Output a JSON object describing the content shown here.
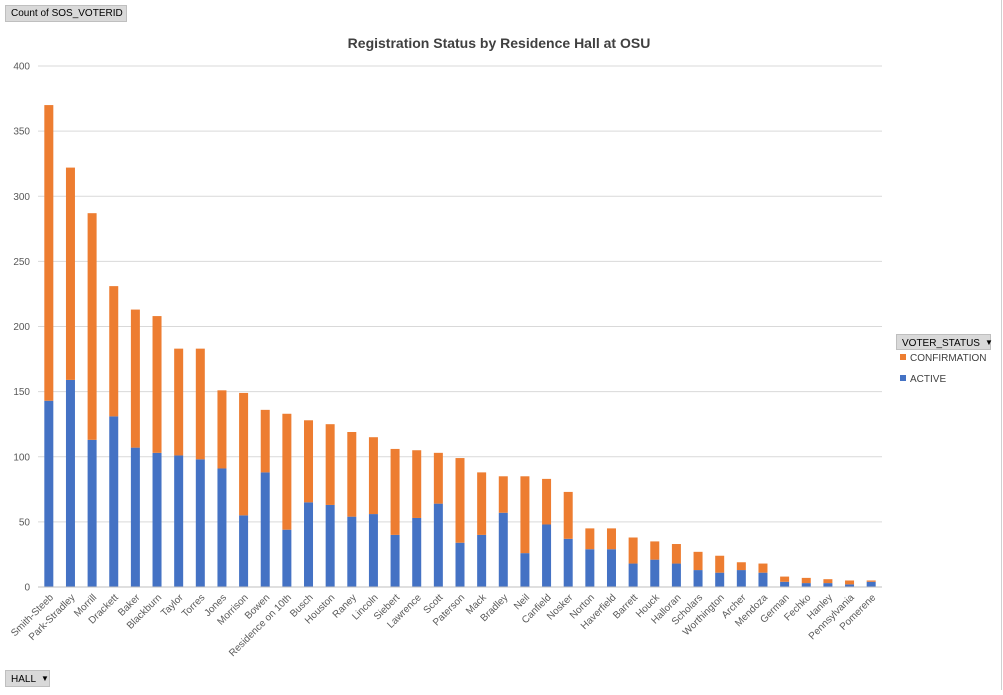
{
  "buttons": {
    "value_field": "Count of SOS_VOTERID",
    "axis_field": "HALL",
    "legend_field": "VOTER_STATUS"
  },
  "colors": {
    "active": "#4472c4",
    "confirmation": "#ed7d31",
    "grid": "#d9d9d9",
    "text": "#595959"
  },
  "icons": {
    "dropdown": "chevron-down-icon"
  },
  "chart_data": {
    "type": "bar",
    "stacked": true,
    "title": "Registration Status by Residence Hall at OSU",
    "xlabel": "",
    "ylabel": "",
    "ylim": [
      0,
      400
    ],
    "yticks": [
      0,
      50,
      100,
      150,
      200,
      250,
      300,
      350,
      400
    ],
    "grid": true,
    "legend_position": "right",
    "categories": [
      "Smith-Steeb",
      "Park-Stradley",
      "Morrill",
      "Drackett",
      "Baker",
      "Blackburn",
      "Taylor",
      "Torres",
      "Jones",
      "Morrison",
      "Bowen",
      "Residence on 10th",
      "Busch",
      "Houston",
      "Raney",
      "Lincoln",
      "Siebert",
      "Lawrence",
      "Scott",
      "Paterson",
      "Mack",
      "Bradley",
      "Neil",
      "Canfield",
      "Nosker",
      "Norton",
      "Haverfield",
      "Barrett",
      "Houck",
      "Halloran",
      "Scholars",
      "Worthington",
      "Archer",
      "Mendoza",
      "German",
      "Fechko",
      "Hanley",
      "Pennsylvania",
      "Pomerene"
    ],
    "series": [
      {
        "name": "ACTIVE",
        "values": [
          143,
          159,
          113,
          131,
          107,
          103,
          101,
          98,
          91,
          55,
          88,
          44,
          65,
          63,
          54,
          56,
          40,
          53,
          64,
          34,
          40,
          57,
          26,
          48,
          37,
          29,
          29,
          18,
          21,
          18,
          13,
          11,
          13,
          11,
          4,
          3,
          3,
          2,
          4
        ]
      },
      {
        "name": "CONFIRMATION",
        "values": [
          227,
          163,
          174,
          100,
          106,
          105,
          82,
          85,
          60,
          94,
          48,
          89,
          63,
          62,
          65,
          59,
          66,
          52,
          39,
          65,
          48,
          28,
          59,
          35,
          36,
          16,
          16,
          20,
          14,
          15,
          14,
          13,
          6,
          7,
          4,
          4,
          3,
          3,
          1
        ]
      }
    ]
  }
}
